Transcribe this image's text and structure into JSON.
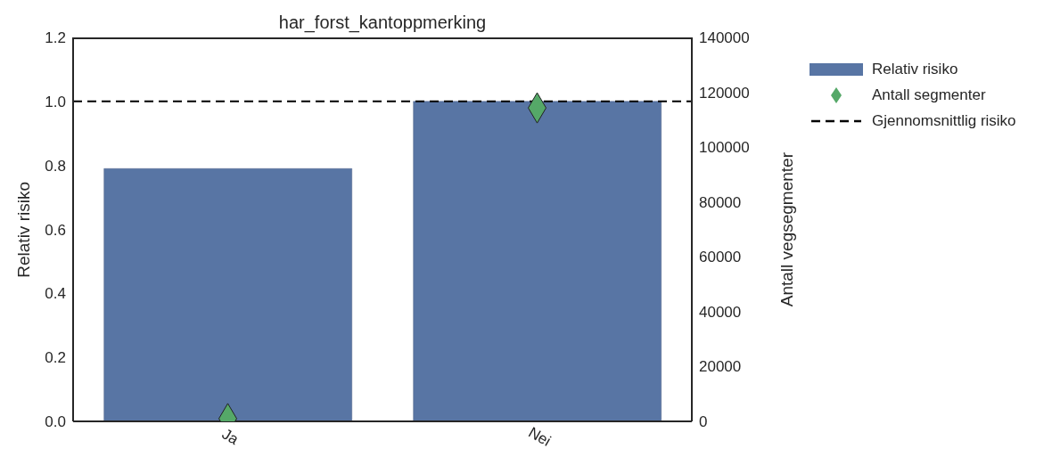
{
  "chart_data": {
    "type": "bar",
    "title": "har_forst_kantoppmerking",
    "ylabel": "Relativ risiko",
    "y2label": "Antall vegsegmenter",
    "categories": [
      "Ja",
      "Nei"
    ],
    "series": [
      {
        "name": "Relativ risiko",
        "color": "#5875a4",
        "values": [
          0.79,
          1.0
        ]
      },
      {
        "name": "Antall segmenter",
        "type": "scatter",
        "axis": "y2",
        "color": "#55a868",
        "marker": "diamond",
        "values": [
          1000,
          114300
        ]
      }
    ],
    "ylim": [
      0,
      1.2
    ],
    "yticks": [
      {
        "value": 0,
        "label": "0.0"
      },
      0.2,
      0.4,
      0.6,
      0.8,
      {
        "value": 1,
        "label": "1.0"
      },
      1.2
    ],
    "y2lim": [
      0,
      140000
    ],
    "y2ticks": [
      0,
      20000,
      40000,
      60000,
      80000,
      100000,
      120000,
      140000
    ],
    "ref_lines": [
      {
        "axis": "y",
        "value": 1.0,
        "label": "Gjennomsnittlig risiko",
        "color": "#000000",
        "line_style": "dashed"
      }
    ],
    "grid": false,
    "legend": "top right"
  }
}
